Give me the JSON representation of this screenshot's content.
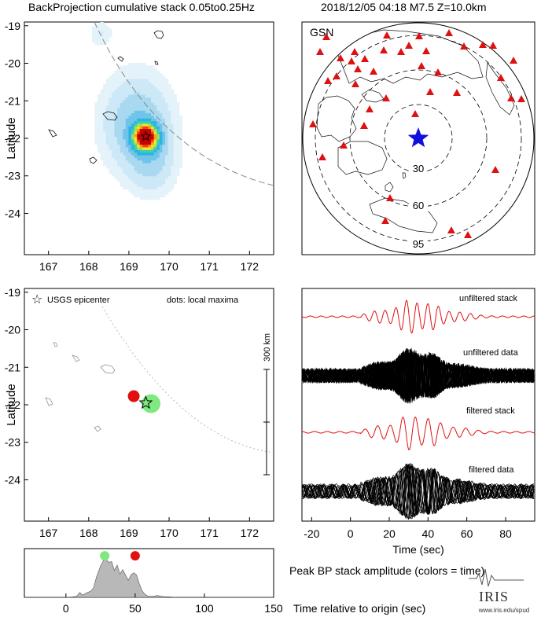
{
  "header": {
    "left_title": "BackProjection cumulative stack 0.05to0.25Hz",
    "right_title": "2018/12/05 04:18  M7.5  Z=10.0km"
  },
  "colors": {
    "epicenter_star_globe": "#1010e0",
    "station": "#dd1111",
    "stack_trace": "#e01010",
    "data_trace": "#000000",
    "local_max_early": "#7fe87f",
    "local_max_late": "#e01010",
    "amplitude_fill": "#b8b8b8",
    "heat_low": "#cfe8f6",
    "heat_high": "#d60000"
  },
  "map_top": {
    "ylabel": "Latitude",
    "lon_ticks": [
      "167",
      "168",
      "169",
      "170",
      "171",
      "172"
    ],
    "lat_ticks": [
      "-19",
      "-20",
      "-21",
      "-22",
      "-23",
      "-24"
    ],
    "epicenter": {
      "lon": 169.42,
      "lat": -21.95
    }
  },
  "globe": {
    "network_label": "GSN",
    "ring_labels": [
      "30",
      "60",
      "95"
    ]
  },
  "map_bottom": {
    "ylabel": "Latitude",
    "lon_ticks": [
      "167",
      "168",
      "169",
      "170",
      "171",
      "172"
    ],
    "lat_ticks": [
      "-19",
      "-20",
      "-21",
      "-22",
      "-23",
      "-24"
    ],
    "legend_star": "USGS epicenter",
    "legend_dots": "dots: local maxima",
    "scale_label": "300 km",
    "local_maxima": [
      {
        "lon": 169.12,
        "lat": -21.77,
        "color": "#e01010"
      },
      {
        "lon": 169.55,
        "lat": -21.97,
        "color": "#7fe87f"
      }
    ],
    "epicenter": {
      "lon": 169.42,
      "lat": -21.95
    }
  },
  "traces": {
    "labels": [
      "unfiltered stack",
      "unfiltered data",
      "filtered stack",
      "filtered data"
    ],
    "xlabel": "Time (sec)",
    "x_ticks": [
      "-20",
      "0",
      "20",
      "40",
      "60",
      "80"
    ]
  },
  "amplitude": {
    "x_ticks": [
      "0",
      "50",
      "100",
      "150"
    ],
    "title": "Peak BP stack amplitude (colors = time)",
    "xlabel": "Time relative to origin (sec)"
  },
  "logo": {
    "name": "IRIS",
    "url": "www.iris.edu/spud"
  },
  "chart_data": [
    {
      "type": "heatmap",
      "title": "BackProjection cumulative stack 0.05to0.25Hz",
      "xlabel": "",
      "ylabel": "Latitude",
      "xlim": [
        166.4,
        172.6
      ],
      "ylim": [
        -25.1,
        -18.9
      ],
      "grid": false,
      "blobs": [
        {
          "lon": 169.42,
          "lat": -21.95,
          "spread_lon": 0.22,
          "spread_lat": 0.25,
          "intensity": 1.0
        },
        {
          "lon": 169.2,
          "lat": -21.6,
          "spread_lon": 0.6,
          "spread_lat": 0.9,
          "intensity": 0.3
        },
        {
          "lon": 169.6,
          "lat": -22.7,
          "spread_lon": 0.4,
          "spread_lat": 0.6,
          "intensity": 0.15
        },
        {
          "lon": 168.3,
          "lat": -19.2,
          "spread_lon": 0.2,
          "spread_lat": 0.25,
          "intensity": 0.12
        }
      ]
    },
    {
      "type": "line",
      "title": "",
      "xlabel": "Time (sec)",
      "xlim": [
        -25,
        95
      ],
      "series": [
        {
          "name": "unfiltered stack",
          "kind": "stack"
        },
        {
          "name": "unfiltered data",
          "kind": "data"
        },
        {
          "name": "filtered stack",
          "kind": "stack"
        },
        {
          "name": "filtered data",
          "kind": "data"
        }
      ]
    },
    {
      "type": "area",
      "title": "Peak BP stack amplitude (colors = time)",
      "xlabel": "Time relative to origin (sec)",
      "xlim": [
        -30,
        150
      ],
      "x": [
        -30,
        0,
        5,
        8,
        10,
        12,
        15,
        18,
        20,
        22,
        25,
        27,
        29,
        31,
        33,
        35,
        37,
        39,
        41,
        43,
        45,
        47,
        49,
        51,
        53,
        55,
        57,
        59,
        62,
        66,
        70,
        75,
        80,
        150
      ],
      "values": [
        0,
        0,
        0.01,
        0.03,
        0.11,
        0.05,
        0.1,
        0.14,
        0.22,
        0.45,
        0.7,
        0.82,
        0.85,
        0.78,
        0.8,
        0.6,
        0.72,
        0.52,
        0.62,
        0.5,
        0.38,
        0.5,
        0.55,
        0.5,
        0.3,
        0.15,
        0.07,
        0.03,
        0.02,
        0.04,
        0.02,
        0.01,
        0,
        0
      ],
      "peaks": [
        {
          "time": 28,
          "value": 0.98,
          "color": "#7fe87f"
        },
        {
          "time": 50,
          "value": 0.98,
          "color": "#e01010"
        }
      ]
    }
  ]
}
